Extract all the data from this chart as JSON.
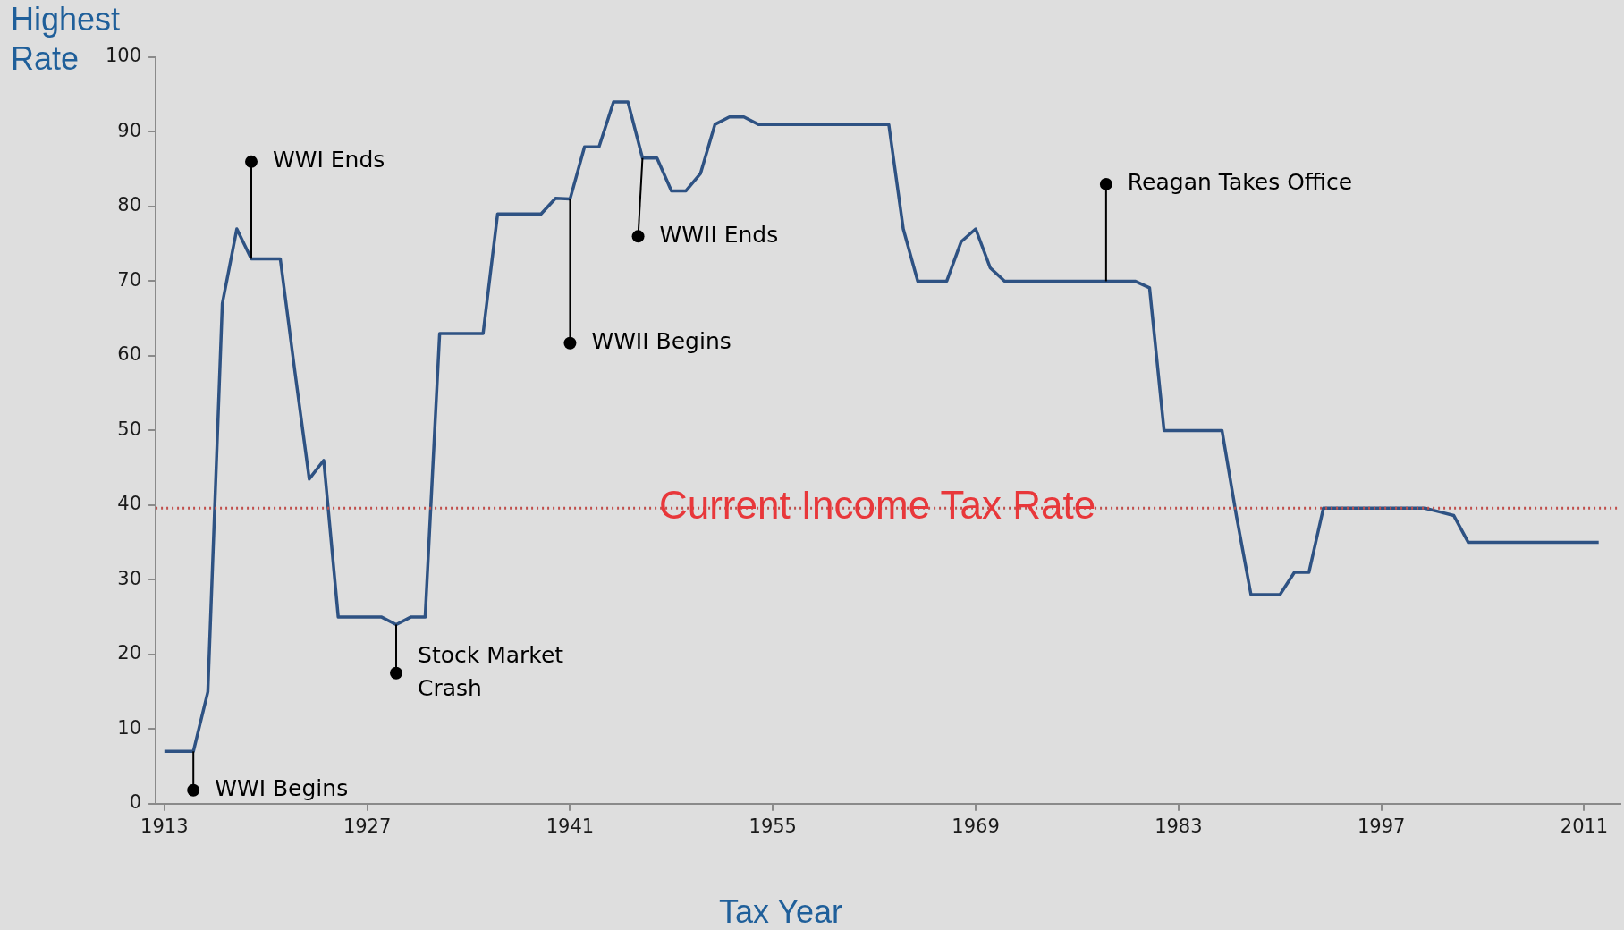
{
  "chart_data": {
    "type": "line",
    "xlabel": "Tax Year",
    "ylabel": "Highest Rate",
    "x": [
      1913,
      1914,
      1915,
      1916,
      1917,
      1918,
      1919,
      1920,
      1921,
      1922,
      1923,
      1924,
      1925,
      1926,
      1927,
      1928,
      1929,
      1930,
      1931,
      1932,
      1933,
      1934,
      1935,
      1936,
      1937,
      1938,
      1939,
      1940,
      1941,
      1942,
      1943,
      1944,
      1945,
      1946,
      1947,
      1948,
      1949,
      1950,
      1951,
      1952,
      1953,
      1954,
      1955,
      1956,
      1957,
      1958,
      1959,
      1960,
      1961,
      1962,
      1963,
      1964,
      1965,
      1966,
      1967,
      1968,
      1969,
      1970,
      1971,
      1972,
      1973,
      1974,
      1975,
      1976,
      1977,
      1978,
      1979,
      1980,
      1981,
      1982,
      1983,
      1984,
      1985,
      1986,
      1987,
      1988,
      1989,
      1990,
      1991,
      1992,
      1993,
      1994,
      1995,
      1996,
      1997,
      1998,
      1999,
      2000,
      2001,
      2002,
      2003,
      2004,
      2005,
      2006,
      2007,
      2008,
      2009,
      2010,
      2011,
      2012
    ],
    "series": [
      {
        "color": "#2e5283",
        "values": [
          7,
          7,
          7,
          15,
          67,
          77,
          73,
          73,
          73,
          58,
          43.5,
          46,
          25,
          25,
          25,
          25,
          24,
          25,
          25,
          63,
          63,
          63,
          63,
          79,
          79,
          79,
          79,
          81.1,
          81,
          88,
          88,
          94,
          94,
          86.5,
          86.5,
          82.1,
          82.1,
          84.4,
          91,
          92,
          92,
          91,
          91,
          91,
          91,
          91,
          91,
          91,
          91,
          91,
          91,
          77,
          70,
          70,
          70,
          75.3,
          77,
          71.8,
          70,
          70,
          70,
          70,
          70,
          70,
          70,
          70,
          70,
          70,
          69.1,
          50,
          50,
          50,
          50,
          50,
          38.5,
          28,
          28,
          28,
          31,
          31,
          39.6,
          39.6,
          39.6,
          39.6,
          39.6,
          39.6,
          39.6,
          39.6,
          39.1,
          38.6,
          35,
          35,
          35,
          35,
          35,
          35,
          35,
          35,
          35,
          35
        ]
      }
    ],
    "xlim": [
      1912.4,
      2013.5
    ],
    "xticks": [
      1913,
      1927,
      1941,
      1955,
      1969,
      1983,
      1997,
      2011
    ],
    "ylim": [
      0,
      100
    ],
    "yticks": [
      0,
      10,
      20,
      30,
      40,
      50,
      60,
      70,
      80,
      90,
      100
    ],
    "grid": false,
    "legend": false,
    "marker": "none",
    "line_style": "solid",
    "ref_lines": [
      {
        "axis": "y",
        "value": 39.6,
        "label": "Current Income Tax Rate",
        "color": "#c0504d",
        "line_style": "dotted"
      }
    ],
    "annotations": [
      {
        "text": "WWI Begins",
        "x": 1915,
        "y": 7
      },
      {
        "text": "WWI Ends",
        "x": 1919,
        "y": 73
      },
      {
        "text": "Stock Market Crash",
        "x": 1929,
        "y": 24
      },
      {
        "text": "WWII Begins",
        "x": 1941,
        "y": 81
      },
      {
        "text": "WWII Ends",
        "x": 1946,
        "y": 86.5
      },
      {
        "text": "Reagan Takes Office",
        "x": 1978,
        "y": 70
      }
    ]
  }
}
